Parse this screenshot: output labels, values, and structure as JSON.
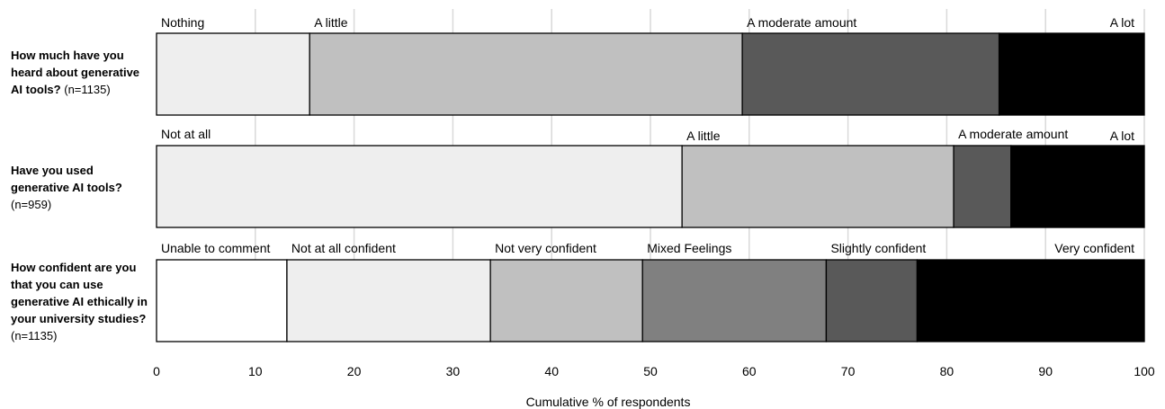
{
  "chart_data": {
    "type": "bar",
    "stacked": true,
    "xlabel": "Cumulative % of respondents",
    "xlim": [
      0,
      100
    ],
    "xticks": [
      0,
      10,
      20,
      30,
      40,
      50,
      60,
      70,
      80,
      90,
      100
    ],
    "grid": true,
    "bars": [
      {
        "question": "How much have you heard about generative AI tools?",
        "n_label": "(n=1135)",
        "segments": [
          {
            "label": "Nothing",
            "start": 0,
            "end": 15.5,
            "color": "#eeeeee"
          },
          {
            "label": "A little",
            "start": 15.5,
            "end": 59.3,
            "color": "#c0c0c0"
          },
          {
            "label": "A moderate amount",
            "start": 59.3,
            "end": 85.3,
            "color": "#595959"
          },
          {
            "label": "A lot",
            "start": 85.3,
            "end": 100,
            "color": "#000000"
          }
        ]
      },
      {
        "question": "Have you used generative AI tools?",
        "n_label": "(n=959)",
        "segments": [
          {
            "label": "Not at all",
            "start": 0,
            "end": 53.2,
            "color": "#eeeeee"
          },
          {
            "label": "A little",
            "start": 53.2,
            "end": 80.7,
            "color": "#c0c0c0"
          },
          {
            "label": "A moderate amount",
            "start": 80.7,
            "end": 86.5,
            "color": "#595959"
          },
          {
            "label": "A lot",
            "start": 86.5,
            "end": 100,
            "color": "#000000"
          }
        ]
      },
      {
        "question": "How confident are you that you can use generative AI ethically in your university studies?",
        "n_label": "(n=1135)",
        "segments": [
          {
            "label": "Unable to comment",
            "start": 0,
            "end": 13.2,
            "color": "#ffffff"
          },
          {
            "label": "Not at all confident",
            "start": 13.2,
            "end": 33.8,
            "color": "#eeeeee"
          },
          {
            "label": "Not very confident",
            "start": 33.8,
            "end": 49.2,
            "color": "#c0c0c0"
          },
          {
            "label": "Mixed Feelings",
            "start": 49.2,
            "end": 67.8,
            "color": "#808080"
          },
          {
            "label": "Slightly confident",
            "start": 67.8,
            "end": 77.0,
            "color": "#595959"
          },
          {
            "label": "Very confident",
            "start": 77.0,
            "end": 100,
            "color": "#000000"
          }
        ]
      }
    ]
  }
}
